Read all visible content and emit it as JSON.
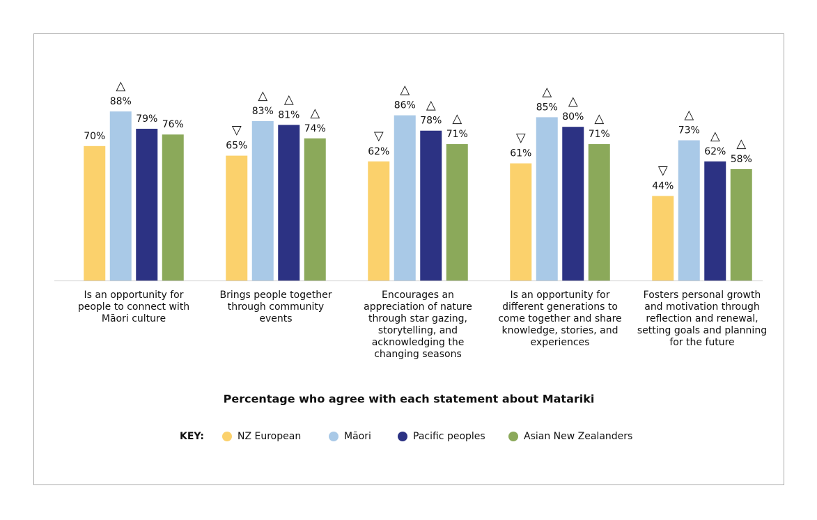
{
  "chart_data": {
    "type": "bar",
    "title": "Percentage who agree with each statement about Matariki",
    "categories": [
      "Is an opportunity for people to connect with Māori culture",
      "Brings people together through community events",
      "Encourages an appreciation of nature through star gazing, storytelling, and acknowledging the changing seasons",
      "Is an opportunity for different generations to come together and share knowledge, stories, and experiences",
      "Fosters personal growth and motivation through reflection and renewal, setting goals and planning for the future"
    ],
    "legend_key": "KEY:",
    "series": [
      {
        "name": "NZ European",
        "color": "#fbd16c",
        "values": [
          70,
          65,
          62,
          61,
          44
        ],
        "value_labels": [
          "70%",
          "65%",
          "62%",
          "61%",
          "44%"
        ],
        "markers": [
          null,
          "▽",
          "▽",
          "▽",
          "▽"
        ]
      },
      {
        "name": "Māori",
        "color": "#a9c9e7",
        "values": [
          88,
          83,
          86,
          85,
          73
        ],
        "value_labels": [
          "88%",
          "83%",
          "86%",
          "85%",
          "73%"
        ],
        "markers": [
          "△",
          "△",
          "△",
          "△",
          "△"
        ]
      },
      {
        "name": "Pacific peoples",
        "color": "#2c3283",
        "values": [
          79,
          81,
          78,
          80,
          62
        ],
        "value_labels": [
          "79%",
          "81%",
          "78%",
          "80%",
          "62%"
        ],
        "markers": [
          null,
          "△",
          "△",
          "△",
          "△"
        ]
      },
      {
        "name": "Asian New Zealanders",
        "color": "#8ba95a",
        "values": [
          76,
          74,
          71,
          71,
          58
        ],
        "value_labels": [
          "76%",
          "74%",
          "71%",
          "71%",
          "58%"
        ],
        "markers": [
          null,
          "△",
          "△",
          "△",
          "△"
        ]
      }
    ]
  }
}
